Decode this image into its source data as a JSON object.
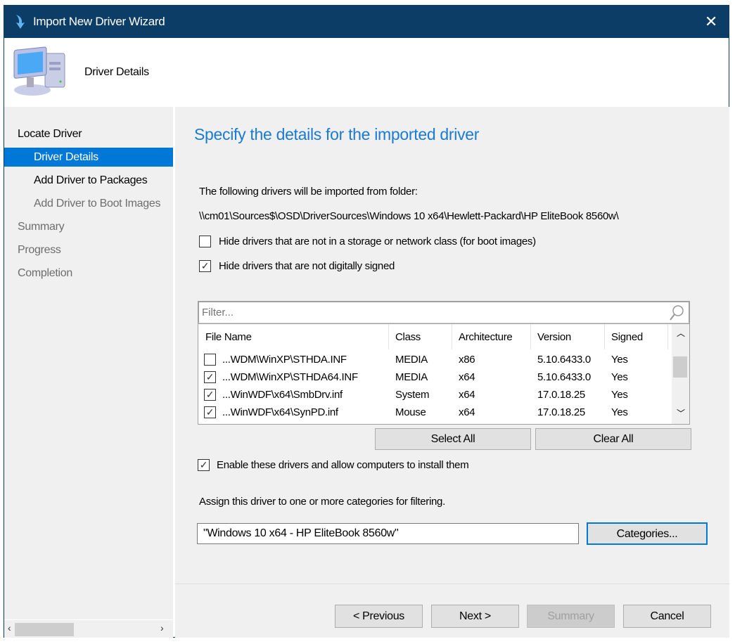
{
  "window": {
    "title": "Import New Driver Wizard",
    "close_icon": "close-icon"
  },
  "header": {
    "title": "Driver Details",
    "icon": "computer-icon"
  },
  "sidebar": {
    "items": [
      {
        "label": "Locate Driver",
        "state": "done"
      },
      {
        "label": "Driver Details",
        "state": "selected"
      },
      {
        "label": "Add Driver to Packages",
        "state": "done"
      },
      {
        "label": "Add Driver to Boot Images",
        "state": "disabled"
      },
      {
        "label": "Summary",
        "state": "pending"
      },
      {
        "label": "Progress",
        "state": "pending"
      },
      {
        "label": "Completion",
        "state": "pending"
      }
    ]
  },
  "main": {
    "heading": "Specify the details for the imported driver",
    "folder_label": "The following drivers will be imported from folder:",
    "folder_path": "\\\\cm01\\Sources$\\OSD\\DriverSources\\Windows 10 x64\\Hewlett-Packard\\HP EliteBook 8560w\\",
    "hide_storage": {
      "label": "Hide drivers that are not in a storage or network class (for boot images)",
      "checked": false
    },
    "hide_unsigned": {
      "label": "Hide drivers that are not digitally signed",
      "checked": true
    },
    "filter_placeholder": "Filter...",
    "columns": [
      "File Name",
      "Class",
      "Architecture",
      "Version",
      "Signed"
    ],
    "rows": [
      {
        "checked": false,
        "file": "...WDM\\WinXP\\STHDA.INF",
        "class": "MEDIA",
        "arch": "x86",
        "version": "5.10.6433.0",
        "signed": "Yes"
      },
      {
        "checked": true,
        "file": "...WDM\\WinXP\\STHDA64.INF",
        "class": "MEDIA",
        "arch": "x64",
        "version": "5.10.6433.0",
        "signed": "Yes"
      },
      {
        "checked": true,
        "file": "...WinWDF\\x64\\SmbDrv.inf",
        "class": "System",
        "arch": "x64",
        "version": "17.0.18.25",
        "signed": "Yes"
      },
      {
        "checked": true,
        "file": "...WinWDF\\x64\\SynPD.inf",
        "class": "Mouse",
        "arch": "x64",
        "version": "17.0.18.25",
        "signed": "Yes"
      }
    ],
    "select_all": "Select All",
    "clear_all": "Clear All",
    "enable": {
      "label": "Enable these drivers and allow computers to install them",
      "checked": true
    },
    "assign_label": "Assign this driver to one or more categories for filtering.",
    "categories_value": "\"Windows 10 x64 - HP EliteBook 8560w\"",
    "categories_button": "Categories..."
  },
  "footer": {
    "previous": "< Previous",
    "next": "Next >",
    "summary": "Summary",
    "cancel": "Cancel"
  },
  "colors": {
    "titlebar": "#0b3d66",
    "accent": "#0078d7",
    "heading": "#1a7ad4"
  }
}
